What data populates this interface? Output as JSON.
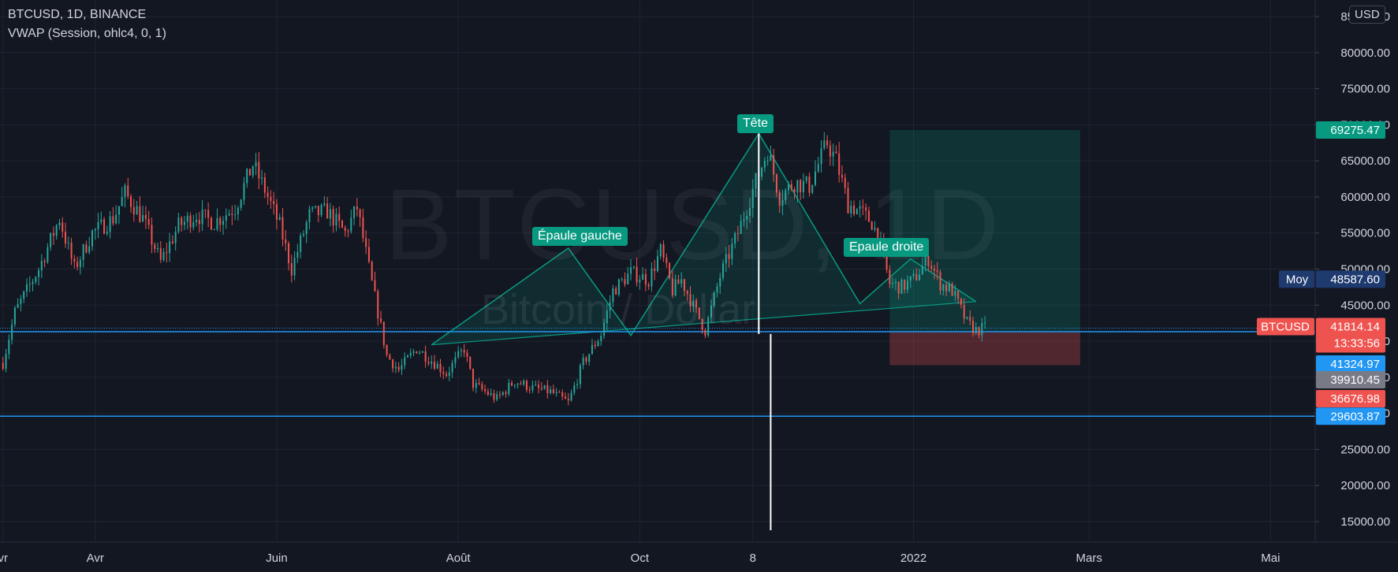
{
  "header": {
    "symbol_line": "BTCUSD, 1D, BINANCE",
    "indicator_line": "VWAP (Session, ohlc4, 0, 1)",
    "currency_button": "USD"
  },
  "watermark": {
    "symbol": "BTCUSD, 1D",
    "description": "Bitcoin / Dollar"
  },
  "colors": {
    "background": "#131722",
    "up": "#26a69a",
    "down": "#ef5350",
    "pattern": "#089981",
    "hline": "#2196f3",
    "vwap": "#2962ff"
  },
  "chart_data": {
    "type": "candlestick",
    "symbol": "BTCUSD",
    "interval": "1D",
    "exchange": "BINANCE",
    "ylim": [
      12000,
      87000
    ],
    "y_ticks": [
      15000,
      20000,
      25000,
      30000,
      35000,
      40000,
      45000,
      50000,
      55000,
      60000,
      65000,
      70000,
      75000,
      80000,
      85000
    ],
    "y_tick_labels": [
      "15000.00",
      "20000.00",
      "25000.00",
      "30000.00",
      "35000.00",
      "40000.00",
      "45000.00",
      "50000.00",
      "55000.00",
      "60000.00",
      "65000.00",
      "70000.00",
      "75000.00",
      "80000.00",
      "85000.00"
    ],
    "x_range": [
      "2021-02-28",
      "2022-05-16"
    ],
    "x_ticks": [
      {
        "label": "vr",
        "date": "2021-03-01"
      },
      {
        "label": "Avr",
        "date": "2021-04-01"
      },
      {
        "label": "Juin",
        "date": "2021-06-01"
      },
      {
        "label": "Août",
        "date": "2021-08-01"
      },
      {
        "label": "Oct",
        "date": "2021-10-01"
      },
      {
        "label": "8",
        "date": "2021-11-08"
      },
      {
        "label": "2022",
        "date": "2022-01-01"
      },
      {
        "label": "Mars",
        "date": "2022-03-01"
      },
      {
        "label": "Mai",
        "date": "2022-05-01"
      }
    ],
    "close_series": [
      {
        "date": "2021-03-01",
        "close": 37000
      },
      {
        "date": "2021-03-05",
        "close": 44000
      },
      {
        "date": "2021-03-13",
        "close": 50000
      },
      {
        "date": "2021-03-20",
        "close": 57000
      },
      {
        "date": "2021-03-25",
        "close": 50000
      },
      {
        "date": "2021-03-31",
        "close": 55000
      },
      {
        "date": "2021-04-07",
        "close": 57000
      },
      {
        "date": "2021-04-11",
        "close": 60500
      },
      {
        "date": "2021-04-17",
        "close": 57000
      },
      {
        "date": "2021-04-23",
        "close": 51000
      },
      {
        "date": "2021-04-29",
        "close": 56000
      },
      {
        "date": "2021-05-05",
        "close": 57500
      },
      {
        "date": "2021-05-11",
        "close": 56500
      },
      {
        "date": "2021-05-18",
        "close": 58500
      },
      {
        "date": "2021-05-24",
        "close": 64500
      },
      {
        "date": "2021-05-28",
        "close": 61000
      },
      {
        "date": "2021-06-02",
        "close": 56000
      },
      {
        "date": "2021-06-06",
        "close": 50000
      },
      {
        "date": "2021-06-12",
        "close": 57500
      },
      {
        "date": "2021-06-18",
        "close": 58000
      },
      {
        "date": "2021-06-24",
        "close": 55000
      },
      {
        "date": "2021-06-28",
        "close": 58500
      },
      {
        "date": "2021-07-03",
        "close": 48000
      },
      {
        "date": "2021-07-08",
        "close": 38000
      },
      {
        "date": "2021-07-12",
        "close": 36000
      },
      {
        "date": "2021-07-18",
        "close": 39000
      },
      {
        "date": "2021-07-24",
        "close": 37000
      },
      {
        "date": "2021-07-28",
        "close": 35500
      },
      {
        "date": "2021-08-03",
        "close": 39000
      },
      {
        "date": "2021-08-06",
        "close": 34000
      },
      {
        "date": "2021-08-14",
        "close": 32000
      },
      {
        "date": "2021-08-20",
        "close": 34500
      },
      {
        "date": "2021-08-26",
        "close": 33500
      },
      {
        "date": "2021-09-01",
        "close": 33000
      },
      {
        "date": "2021-09-07",
        "close": 31500
      },
      {
        "date": "2021-09-12",
        "close": 37000
      },
      {
        "date": "2021-09-18",
        "close": 41000
      },
      {
        "date": "2021-09-22",
        "close": 47000
      },
      {
        "date": "2021-09-28",
        "close": 49500
      },
      {
        "date": "2021-10-04",
        "close": 48500
      },
      {
        "date": "2021-10-08",
        "close": 52500
      },
      {
        "date": "2021-10-12",
        "close": 47000
      },
      {
        "date": "2021-10-15",
        "close": 48500
      },
      {
        "date": "2021-10-20",
        "close": 44000
      },
      {
        "date": "2021-10-23",
        "close": 41500
      },
      {
        "date": "2021-10-28",
        "close": 49000
      },
      {
        "date": "2021-11-03",
        "close": 55000
      },
      {
        "date": "2021-11-08",
        "close": 61000
      },
      {
        "date": "2021-11-13",
        "close": 66500
      },
      {
        "date": "2021-11-17",
        "close": 60000
      },
      {
        "date": "2021-11-22",
        "close": 62000
      },
      {
        "date": "2021-11-27",
        "close": 61500
      },
      {
        "date": "2021-12-03",
        "close": 67500
      },
      {
        "date": "2021-12-06",
        "close": 65000
      },
      {
        "date": "2021-12-10",
        "close": 59000
      },
      {
        "date": "2021-12-14",
        "close": 58000
      },
      {
        "date": "2021-12-18",
        "close": 56500
      },
      {
        "date": "2021-12-20",
        "close": 54500
      },
      {
        "date": "2021-12-24",
        "close": 48000
      },
      {
        "date": "2021-12-28",
        "close": 47500
      },
      {
        "date": "2022-01-01",
        "close": 48500
      },
      {
        "date": "2022-01-06",
        "close": 51500
      },
      {
        "date": "2022-01-10",
        "close": 48000
      },
      {
        "date": "2022-01-14",
        "close": 47000
      },
      {
        "date": "2022-01-19",
        "close": 42500
      },
      {
        "date": "2022-01-22",
        "close": 41500
      },
      {
        "date": "2022-01-25",
        "close": 41800
      }
    ],
    "pattern": {
      "name": "head and shoulders",
      "labels": [
        "Épaule gauche",
        "Tête",
        "Epaule droite"
      ],
      "points": [
        {
          "date": "2021-07-23",
          "price": 39500
        },
        {
          "date": "2021-09-07",
          "price": 52900
        },
        {
          "date": "2021-09-28",
          "price": 40800
        },
        {
          "date": "2021-11-10",
          "price": 68800
        },
        {
          "date": "2021-12-14",
          "price": 45200
        },
        {
          "date": "2021-12-31",
          "price": 51400
        },
        {
          "date": "2022-01-22",
          "price": 45500
        }
      ],
      "neckline": [
        {
          "date": "2021-07-23",
          "price": 39500
        },
        {
          "date": "2022-01-22",
          "price": 45500
        }
      ],
      "head_measure": {
        "date": "2021-11-10",
        "from": 68800,
        "to": 41000
      },
      "target_measure": {
        "date": "2021-11-14",
        "from": 41000,
        "to": 13800
      }
    },
    "position_tool": {
      "start": "2021-12-24",
      "end": "2022-02-26",
      "entry": 41324.97,
      "target": 69275.47,
      "stop": 36676.98
    },
    "hlines": [
      41324.97,
      29603.87
    ],
    "price_labels": [
      {
        "id": "target",
        "text": "69275.47",
        "value": 69275.47,
        "color": "#089981"
      },
      {
        "id": "vwap",
        "name": "Moy",
        "text": "48587.60",
        "value": 48587.6,
        "color": "#1e3a6e"
      },
      {
        "id": "last",
        "name": "BTCUSD",
        "text": "41814.14",
        "countdown": "13:33:56",
        "value": 41814.14,
        "color": "#ef5350"
      },
      {
        "id": "entry",
        "text": "41324.97",
        "value": 41324.97,
        "color": "#2196f3"
      },
      {
        "id": "mid",
        "text": "39910.45",
        "value": 39910.45,
        "color": "#787b86"
      },
      {
        "id": "stop",
        "text": "36676.98",
        "value": 36676.98,
        "color": "#ef5350"
      },
      {
        "id": "support",
        "text": "29603.87",
        "value": 29603.87,
        "color": "#2196f3"
      }
    ]
  }
}
